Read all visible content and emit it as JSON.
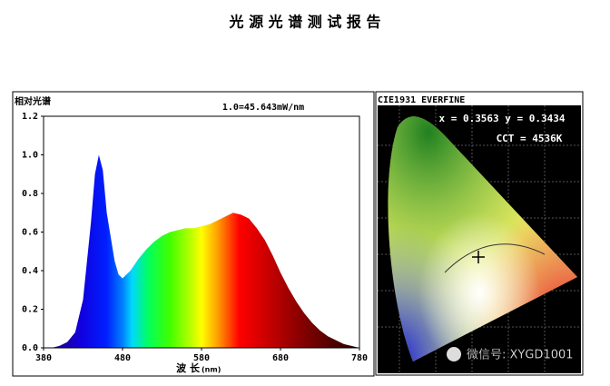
{
  "header": {
    "title": "光 源 光 谱 测 试 报 告"
  },
  "chart_data": {
    "type": "area",
    "ylabel": "相对光谱",
    "annotation": "1.0=45.643mW/nm",
    "xlabel": "波 长",
    "xlabel_unit": "(nm)",
    "x": [
      380,
      390,
      400,
      410,
      420,
      430,
      440,
      445,
      450,
      455,
      460,
      470,
      475,
      480,
      490,
      500,
      510,
      520,
      530,
      540,
      550,
      560,
      570,
      580,
      590,
      600,
      610,
      620,
      630,
      640,
      650,
      660,
      670,
      680,
      690,
      700,
      710,
      720,
      730,
      740,
      750,
      760,
      770,
      780
    ],
    "series": [
      {
        "name": "相对光谱",
        "values": [
          0.0,
          0.0,
          0.01,
          0.03,
          0.08,
          0.25,
          0.65,
          0.9,
          1.0,
          0.92,
          0.7,
          0.45,
          0.38,
          0.36,
          0.4,
          0.46,
          0.51,
          0.55,
          0.58,
          0.6,
          0.61,
          0.62,
          0.62,
          0.63,
          0.64,
          0.66,
          0.68,
          0.7,
          0.69,
          0.67,
          0.62,
          0.56,
          0.48,
          0.39,
          0.31,
          0.24,
          0.18,
          0.13,
          0.09,
          0.06,
          0.04,
          0.02,
          0.01,
          0.0
        ]
      }
    ],
    "xlim": [
      380,
      780
    ],
    "xticks": [
      380,
      480,
      580,
      680,
      780
    ],
    "ylim": [
      0,
      1.2
    ],
    "yticks": [
      {
        "value": 0,
        "label": "0.0"
      },
      0.2,
      0.4,
      0.6,
      0.8,
      {
        "value": 1,
        "label": "1.0"
      },
      1.2
    ]
  },
  "cie": {
    "title": "CIE1931 EVERFINE",
    "coords": "x = 0.3563 y = 0.3434",
    "cct": "CCT = 4536K"
  },
  "watermark": "微信号: XYGD1001"
}
